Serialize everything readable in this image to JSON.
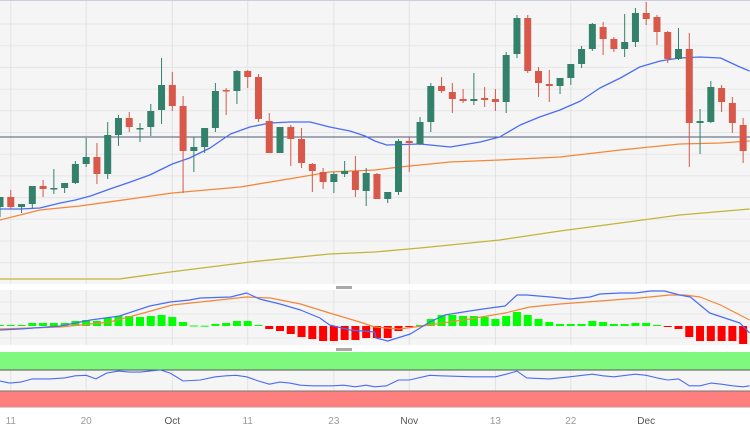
{
  "chart_data": {
    "type": "candlestick",
    "title": "",
    "units_note": "relative price units (no price axis shown)",
    "colors": {
      "up": "#33806b",
      "down": "#d8584a",
      "sma_fast": "#4a6cf7",
      "sma_mid": "#f5873a",
      "sma_slow": "#c2b43a",
      "level_line": "#4a5a78",
      "hist_up": "#00ff00",
      "hist_down": "#ff0000",
      "rsi_overbought_band": "#7ef97e",
      "rsi_oversold_band": "#ff7f7f",
      "rsi_line": "#4a6cf7"
    },
    "x_ticks": [
      {
        "label": "11",
        "index": 1
      },
      {
        "label": "20",
        "index": 8
      },
      {
        "label": "Oct",
        "index": 16,
        "month": true
      },
      {
        "label": "11",
        "index": 23
      },
      {
        "label": "23",
        "index": 31
      },
      {
        "label": "Nov",
        "index": 38,
        "month": true
      },
      {
        "label": "13",
        "index": 46
      },
      {
        "label": "22",
        "index": 53
      },
      {
        "label": "Dec",
        "index": 60,
        "month": true
      }
    ],
    "price_range": [
      0,
      290
    ],
    "level_line": 153,
    "candles": [
      [
        83,
        93,
        73,
        93
      ],
      [
        93,
        100,
        81,
        83
      ],
      [
        83,
        86,
        77,
        86
      ],
      [
        86,
        104,
        82,
        104
      ],
      [
        104,
        110,
        93,
        101
      ],
      [
        102,
        121,
        96,
        102
      ],
      [
        102,
        107,
        97,
        107
      ],
      [
        107,
        129,
        106,
        126
      ],
      [
        126,
        152,
        123,
        133
      ],
      [
        133,
        147,
        106,
        116
      ],
      [
        116,
        168,
        111,
        155
      ],
      [
        155,
        175,
        144,
        172
      ],
      [
        172,
        178,
        158,
        163
      ],
      [
        162,
        167,
        148,
        162
      ],
      [
        163,
        186,
        154,
        179
      ],
      [
        180,
        232,
        166,
        205
      ],
      [
        205,
        218,
        179,
        184
      ],
      [
        184,
        194,
        97,
        139
      ],
      [
        139,
        153,
        118,
        143
      ],
      [
        143,
        162,
        137,
        162
      ],
      [
        162,
        207,
        158,
        199
      ],
      [
        200,
        202,
        175,
        199
      ],
      [
        199,
        220,
        186,
        219
      ],
      [
        219,
        220,
        202,
        213
      ],
      [
        213,
        216,
        168,
        171
      ],
      [
        169,
        177,
        137,
        137
      ],
      [
        137,
        163,
        137,
        163
      ],
      [
        163,
        165,
        124,
        151
      ],
      [
        151,
        162,
        122,
        127
      ],
      [
        126,
        127,
        98,
        119
      ],
      [
        118,
        122,
        101,
        108
      ],
      [
        108,
        118,
        97,
        116
      ],
      [
        116,
        129,
        113,
        119
      ],
      [
        119,
        134,
        93,
        100
      ],
      [
        99,
        122,
        84,
        117
      ],
      [
        116,
        117,
        91,
        91
      ],
      [
        91,
        98,
        87,
        98
      ],
      [
        98,
        151,
        95,
        149
      ],
      [
        149,
        153,
        118,
        147
      ],
      [
        146,
        173,
        145,
        168
      ],
      [
        168,
        207,
        158,
        204
      ],
      [
        204,
        213,
        197,
        199
      ],
      [
        198,
        207,
        177,
        191
      ],
      [
        191,
        201,
        187,
        189
      ],
      [
        189,
        217,
        185,
        191
      ],
      [
        192,
        203,
        183,
        190
      ],
      [
        191,
        201,
        179,
        188
      ],
      [
        188,
        238,
        177,
        235
      ],
      [
        236,
        275,
        232,
        272
      ],
      [
        272,
        275,
        217,
        219
      ],
      [
        219,
        223,
        193,
        207
      ],
      [
        206,
        220,
        188,
        204
      ],
      [
        204,
        212,
        196,
        212
      ],
      [
        212,
        226,
        205,
        226
      ],
      [
        226,
        244,
        222,
        241
      ],
      [
        241,
        267,
        239,
        266
      ],
      [
        263,
        268,
        235,
        251
      ],
      [
        251,
        253,
        238,
        241
      ],
      [
        241,
        276,
        233,
        248
      ],
      [
        248,
        282,
        243,
        277
      ],
      [
        277,
        288,
        265,
        271
      ],
      [
        273,
        275,
        245,
        258
      ],
      [
        258,
        259,
        227,
        231
      ],
      [
        231,
        262,
        230,
        241
      ],
      [
        241,
        257,
        123,
        167
      ],
      [
        167,
        181,
        136,
        169
      ],
      [
        168,
        209,
        167,
        203
      ],
      [
        202,
        205,
        178,
        188
      ],
      [
        187,
        193,
        157,
        167
      ],
      [
        165,
        172,
        127,
        139
      ]
    ],
    "sma_fast": [
      [
        0,
        81
      ],
      [
        1.9,
        81
      ],
      [
        3.7,
        82
      ],
      [
        5.6,
        87
      ],
      [
        7,
        90
      ],
      [
        8.4,
        94
      ],
      [
        10.2,
        101
      ],
      [
        12.1,
        108
      ],
      [
        13.9,
        115
      ],
      [
        16,
        126
      ],
      [
        17.6,
        132
      ],
      [
        19.5,
        142
      ],
      [
        21.4,
        156
      ],
      [
        23.2,
        163
      ],
      [
        25.1,
        167
      ],
      [
        26.9,
        168
      ],
      [
        28.8,
        168
      ],
      [
        30.6,
        163
      ],
      [
        32.5,
        159
      ],
      [
        33.9,
        154
      ],
      [
        34.8,
        149
      ],
      [
        35.9,
        145
      ],
      [
        39,
        146
      ],
      [
        41.8,
        143
      ],
      [
        44.6,
        148
      ],
      [
        46.4,
        153
      ],
      [
        48.3,
        165
      ],
      [
        50.1,
        173
      ],
      [
        52,
        180
      ],
      [
        53.9,
        189
      ],
      [
        55.7,
        202
      ],
      [
        57.6,
        212
      ],
      [
        59.4,
        223
      ],
      [
        61.3,
        229
      ],
      [
        63.1,
        232
      ],
      [
        65,
        233
      ],
      [
        66.9,
        232
      ],
      [
        68.7,
        223
      ],
      [
        69.6,
        219
      ]
    ],
    "sma_mid": [
      [
        0,
        70
      ],
      [
        3.7,
        80
      ],
      [
        7.4,
        84
      ],
      [
        12.1,
        91
      ],
      [
        16,
        97
      ],
      [
        22.3,
        103
      ],
      [
        27.9,
        113
      ],
      [
        30.6,
        118
      ],
      [
        34.8,
        120
      ],
      [
        37.1,
        123
      ],
      [
        41.8,
        128
      ],
      [
        46.4,
        130
      ],
      [
        52,
        133
      ],
      [
        57.6,
        140
      ],
      [
        63.1,
        146
      ],
      [
        66.9,
        147
      ],
      [
        69.6,
        149
      ]
    ],
    "sma_slow": [
      [
        0,
        11
      ],
      [
        11.1,
        11
      ],
      [
        15.8,
        18
      ],
      [
        23.2,
        28
      ],
      [
        30.6,
        36
      ],
      [
        34.8,
        38
      ],
      [
        39,
        42
      ],
      [
        46.4,
        50
      ],
      [
        52,
        59
      ],
      [
        57.6,
        67
      ],
      [
        63.1,
        75
      ],
      [
        69.6,
        81
      ]
    ],
    "macd": {
      "histogram": [
        1,
        1,
        1,
        3,
        3,
        3,
        3,
        5,
        6,
        5,
        8,
        10,
        10,
        9,
        10,
        11,
        9,
        4,
        0.5,
        0.3,
        2,
        3,
        5,
        5,
        1,
        -3,
        -5,
        -8,
        -11,
        -13,
        -15,
        -15,
        -14,
        -14,
        -12,
        -12,
        -12,
        -5,
        -1,
        1,
        7,
        11,
        11,
        10,
        10,
        9,
        7,
        10,
        14,
        11,
        7,
        4,
        2,
        2,
        2,
        5,
        4,
        2,
        2,
        3,
        3,
        1,
        -1,
        -3,
        -11,
        -15,
        -15,
        -15,
        -15,
        -18
      ],
      "macd_line": [
        [
          0,
          -4
        ],
        [
          1.9,
          -3
        ],
        [
          5.6,
          0
        ],
        [
          8.4,
          6
        ],
        [
          11.1,
          10
        ],
        [
          13.9,
          20
        ],
        [
          15.8,
          24
        ],
        [
          17.6,
          26
        ],
        [
          18.6,
          28
        ],
        [
          21.4,
          29
        ],
        [
          22.9,
          33
        ],
        [
          24.1,
          27
        ],
        [
          26,
          22
        ],
        [
          27.9,
          16
        ],
        [
          29.7,
          8
        ],
        [
          30.6,
          1
        ],
        [
          32.5,
          -4
        ],
        [
          34.8,
          -6
        ],
        [
          34.9,
          -12
        ],
        [
          36,
          -15
        ],
        [
          38.1,
          -8
        ],
        [
          39.9,
          4
        ],
        [
          41.3,
          11
        ],
        [
          43.6,
          15
        ],
        [
          45.5,
          18
        ],
        [
          46.9,
          20
        ],
        [
          48,
          31
        ],
        [
          48.9,
          31
        ],
        [
          51.1,
          29
        ],
        [
          52.9,
          27
        ],
        [
          54.8,
          29
        ],
        [
          55.7,
          32
        ],
        [
          57.6,
          33
        ],
        [
          59,
          33
        ],
        [
          60.4,
          35
        ],
        [
          61.7,
          35
        ],
        [
          63.1,
          31
        ],
        [
          64.1,
          29
        ],
        [
          65,
          21
        ],
        [
          65.9,
          13
        ],
        [
          67.3,
          8
        ],
        [
          68.7,
          3
        ],
        [
          69.6,
          -7
        ]
      ],
      "signal_line": [
        [
          0,
          -3
        ],
        [
          5.6,
          -1
        ],
        [
          10.2,
          4
        ],
        [
          13,
          12
        ],
        [
          16,
          21
        ],
        [
          18.6,
          24
        ],
        [
          22.9,
          29
        ],
        [
          25.1,
          28
        ],
        [
          27.9,
          22
        ],
        [
          30.6,
          13
        ],
        [
          33.4,
          4
        ],
        [
          34.8,
          -1
        ],
        [
          37.1,
          -3
        ],
        [
          39.9,
          1
        ],
        [
          43.6,
          7
        ],
        [
          46.9,
          13
        ],
        [
          49.2,
          19
        ],
        [
          52,
          22
        ],
        [
          55.7,
          25
        ],
        [
          59.4,
          28
        ],
        [
          62.2,
          31
        ],
        [
          63.6,
          31
        ],
        [
          65,
          29
        ],
        [
          66.9,
          21
        ],
        [
          69.6,
          6
        ]
      ]
    },
    "rsi": {
      "range": [
        0,
        100
      ],
      "overbought": 70,
      "oversold": 30,
      "values": [
        [
          0,
          49
        ],
        [
          0.9,
          45
        ],
        [
          1.9,
          47
        ],
        [
          3,
          53
        ],
        [
          4.6,
          53
        ],
        [
          6,
          55
        ],
        [
          7,
          59
        ],
        [
          8,
          60
        ],
        [
          8.9,
          53
        ],
        [
          9.9,
          64
        ],
        [
          11,
          68
        ],
        [
          12.1,
          66
        ],
        [
          13,
          66
        ],
        [
          13.9,
          68
        ],
        [
          14.9,
          70
        ],
        [
          15.8,
          64
        ],
        [
          17,
          49
        ],
        [
          18.6,
          51
        ],
        [
          20,
          57
        ],
        [
          21,
          59
        ],
        [
          21.9,
          60
        ],
        [
          22.9,
          57
        ],
        [
          24,
          49
        ],
        [
          25,
          43
        ],
        [
          26,
          47
        ],
        [
          26.9,
          45
        ],
        [
          27.9,
          41
        ],
        [
          29,
          40
        ],
        [
          30,
          40
        ],
        [
          30.9,
          40
        ],
        [
          31.9,
          41
        ],
        [
          33,
          38
        ],
        [
          34,
          41
        ],
        [
          34.8,
          38
        ],
        [
          35.9,
          40
        ],
        [
          37,
          51
        ],
        [
          38,
          51
        ],
        [
          39.9,
          60
        ],
        [
          40.9,
          59
        ],
        [
          43.9,
          57
        ],
        [
          46,
          57
        ],
        [
          47,
          62
        ],
        [
          48,
          68
        ],
        [
          48.9,
          55
        ],
        [
          51,
          53
        ],
        [
          52.9,
          57
        ],
        [
          55,
          62
        ],
        [
          56,
          59
        ],
        [
          57,
          57
        ],
        [
          59,
          62
        ],
        [
          60,
          60
        ],
        [
          61,
          55
        ],
        [
          62,
          51
        ],
        [
          63,
          53
        ],
        [
          64,
          40
        ],
        [
          65,
          40
        ],
        [
          66,
          45
        ],
        [
          67,
          43
        ],
        [
          68,
          40
        ],
        [
          69,
          38
        ],
        [
          69.6,
          40
        ]
      ]
    }
  }
}
